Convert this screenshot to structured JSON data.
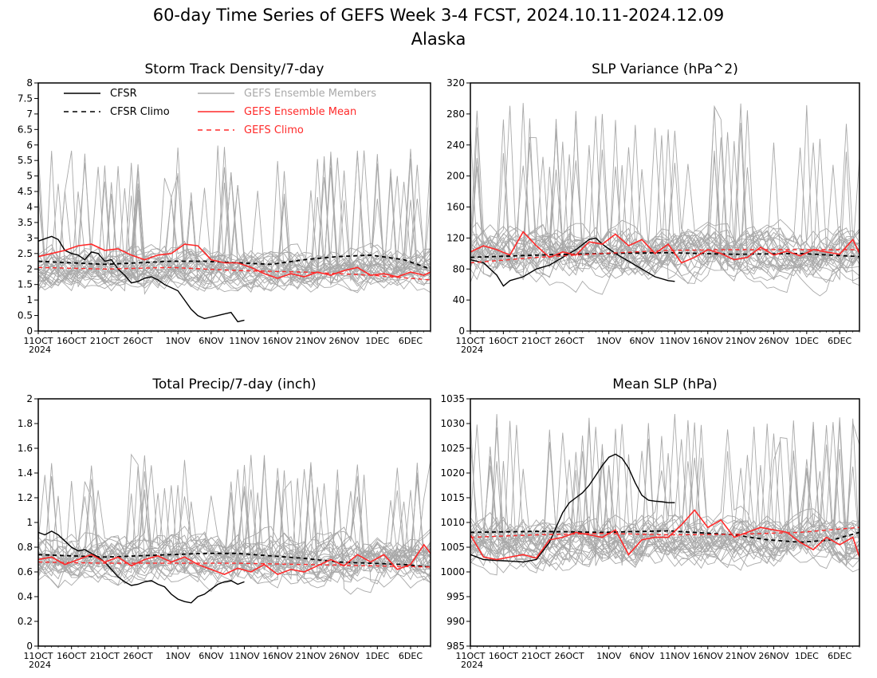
{
  "figure": {
    "title": "60-day Time Series of GEFS Week 3-4 FCST, 2024.10.11-2024.12.09",
    "subtitle": "Alaska"
  },
  "colors": {
    "cfsr": "#000000",
    "gefs_mean": "#ff2a2a",
    "gefs_members": "#a9a9a9",
    "frame": "#000000"
  },
  "legend": [
    {
      "label": "CFSR",
      "style": "solid",
      "color": "#000000"
    },
    {
      "label": "CFSR Climo",
      "style": "dashed",
      "color": "#000000"
    },
    {
      "label": "GEFS Ensemble Members",
      "style": "solid",
      "color": "#a9a9a9"
    },
    {
      "label": "GEFS Ensemble Mean",
      "style": "solid",
      "color": "#ff2a2a"
    },
    {
      "label": "GEFS Climo",
      "style": "dashed",
      "color": "#ff2a2a"
    }
  ],
  "x_axis": {
    "year_label": "2024",
    "start": "2024-10-11",
    "end": "2024-12-09",
    "tick_labels": [
      "11OCT",
      "16OCT",
      "21OCT",
      "26OCT",
      "1NOV",
      "6NOV",
      "11NOV",
      "16NOV",
      "21NOV",
      "26NOV",
      "1DEC",
      "6DEC"
    ],
    "tick_days": [
      0,
      5,
      10,
      15,
      21,
      26,
      31,
      36,
      41,
      46,
      51,
      56
    ]
  },
  "chart_data": [
    {
      "type": "line",
      "title": "Storm Track Density/7-day",
      "ylim": [
        0,
        8
      ],
      "yticks": [
        "0",
        "0.5",
        "1",
        "1.5",
        "2",
        "2.5",
        "3",
        "3.5",
        "4",
        "4.5",
        "5",
        "5.5",
        "6",
        "6.5",
        "7",
        "7.5",
        "8"
      ],
      "members_spread": {
        "center": 2.0,
        "amplitude": 1.1,
        "max_peak": 6.0
      },
      "series": [
        {
          "name": "CFSR",
          "x": [
            0,
            2,
            3,
            4,
            5,
            6,
            7,
            8,
            9,
            10,
            11,
            12,
            13,
            14,
            15,
            16,
            17,
            18,
            19,
            20,
            21,
            22,
            23,
            24,
            25,
            26,
            27,
            28,
            29,
            30,
            31
          ],
          "values": [
            2.9,
            3.05,
            2.95,
            2.6,
            2.5,
            2.45,
            2.3,
            2.55,
            2.5,
            2.25,
            2.3,
            2.0,
            1.8,
            1.55,
            1.6,
            1.7,
            1.75,
            1.65,
            1.5,
            1.4,
            1.3,
            1.0,
            0.7,
            0.5,
            0.4,
            0.45,
            0.5,
            0.55,
            0.6,
            0.3,
            0.35
          ]
        },
        {
          "name": "CFSR Climo",
          "x": [
            0,
            5,
            10,
            15,
            20,
            25,
            30,
            35,
            40,
            45,
            50,
            55,
            59
          ],
          "values": [
            2.25,
            2.2,
            2.15,
            2.2,
            2.25,
            2.25,
            2.2,
            2.15,
            2.3,
            2.4,
            2.45,
            2.3,
            2.0
          ]
        },
        {
          "name": "GEFS Ensemble Mean",
          "x": [
            0,
            2,
            4,
            6,
            8,
            10,
            12,
            14,
            16,
            18,
            20,
            22,
            24,
            26,
            28,
            30,
            32,
            34,
            36,
            38,
            40,
            42,
            44,
            46,
            48,
            50,
            52,
            54,
            56,
            58,
            59
          ],
          "values": [
            2.4,
            2.5,
            2.6,
            2.75,
            2.8,
            2.6,
            2.65,
            2.45,
            2.3,
            2.45,
            2.5,
            2.8,
            2.75,
            2.3,
            2.2,
            2.2,
            2.05,
            1.85,
            1.7,
            1.85,
            1.75,
            1.9,
            1.8,
            1.95,
            2.05,
            1.8,
            1.85,
            1.75,
            1.9,
            1.8,
            1.9
          ]
        },
        {
          "name": "GEFS Climo",
          "x": [
            0,
            10,
            20,
            30,
            40,
            50,
            59
          ],
          "values": [
            2.05,
            2.0,
            2.05,
            1.95,
            1.9,
            1.8,
            1.65
          ]
        }
      ]
    },
    {
      "type": "line",
      "title": "SLP Variance (hPa^2)",
      "ylim": [
        0,
        320
      ],
      "yticks": [
        "0",
        "40",
        "80",
        "120",
        "160",
        "200",
        "240",
        "280",
        "320"
      ],
      "members_spread": {
        "center": 100,
        "amplitude": 55,
        "max_peak": 295
      },
      "series": [
        {
          "name": "CFSR",
          "x": [
            0,
            2,
            4,
            5,
            6,
            8,
            10,
            12,
            14,
            16,
            18,
            19,
            20,
            22,
            23,
            24,
            26,
            27,
            28,
            30,
            31
          ],
          "values": [
            92,
            88,
            72,
            58,
            65,
            70,
            80,
            85,
            95,
            105,
            118,
            120,
            112,
            100,
            95,
            90,
            80,
            75,
            70,
            65,
            64
          ]
        },
        {
          "name": "CFSR Climo",
          "x": [
            0,
            10,
            20,
            30,
            40,
            50,
            59
          ],
          "values": [
            95,
            98,
            100,
            101,
            99,
            100,
            96
          ]
        },
        {
          "name": "GEFS Ensemble Mean",
          "x": [
            0,
            2,
            4,
            6,
            8,
            10,
            12,
            14,
            16,
            18,
            20,
            22,
            24,
            26,
            28,
            30,
            32,
            34,
            36,
            38,
            40,
            42,
            44,
            46,
            48,
            50,
            52,
            54,
            56,
            58,
            59
          ],
          "values": [
            102,
            110,
            105,
            98,
            128,
            110,
            95,
            102,
            98,
            115,
            112,
            125,
            110,
            118,
            100,
            112,
            88,
            95,
            105,
            100,
            92,
            95,
            108,
            98,
            103,
            97,
            105,
            102,
            99,
            118,
            100
          ]
        },
        {
          "name": "GEFS Climo",
          "x": [
            0,
            10,
            20,
            30,
            40,
            50,
            59
          ],
          "values": [
            88,
            95,
            100,
            104,
            105,
            105,
            105
          ]
        }
      ]
    },
    {
      "type": "line",
      "title": "Total Precip/7-day (inch)",
      "ylim": [
        0,
        2
      ],
      "yticks": [
        "0",
        "0.2",
        "0.4",
        "0.6",
        "0.8",
        "1",
        "1.2",
        "1.4",
        "1.6",
        "1.8",
        "2"
      ],
      "members_spread": {
        "center": 0.7,
        "amplitude": 0.32,
        "max_peak": 1.55
      },
      "series": [
        {
          "name": "CFSR",
          "x": [
            0,
            1,
            2,
            3,
            4,
            5,
            6,
            7,
            8,
            9,
            10,
            11,
            12,
            13,
            14,
            15,
            16,
            17,
            18,
            19,
            20,
            21,
            22,
            23,
            24,
            25,
            26,
            27,
            28,
            29,
            30,
            31
          ],
          "values": [
            0.92,
            0.9,
            0.93,
            0.9,
            0.85,
            0.8,
            0.77,
            0.78,
            0.75,
            0.72,
            0.68,
            0.62,
            0.56,
            0.52,
            0.49,
            0.5,
            0.52,
            0.53,
            0.5,
            0.48,
            0.42,
            0.38,
            0.36,
            0.35,
            0.4,
            0.42,
            0.46,
            0.5,
            0.52,
            0.53,
            0.5,
            0.52
          ]
        },
        {
          "name": "CFSR Climo",
          "x": [
            0,
            5,
            10,
            15,
            20,
            25,
            30,
            35,
            40,
            45,
            50,
            55,
            59
          ],
          "values": [
            0.74,
            0.73,
            0.72,
            0.73,
            0.74,
            0.75,
            0.75,
            0.73,
            0.71,
            0.68,
            0.67,
            0.66,
            0.64
          ]
        },
        {
          "name": "GEFS Ensemble Mean",
          "x": [
            0,
            2,
            4,
            6,
            8,
            10,
            12,
            14,
            16,
            18,
            20,
            22,
            24,
            26,
            28,
            30,
            32,
            34,
            36,
            38,
            40,
            42,
            44,
            46,
            48,
            50,
            52,
            54,
            56,
            58,
            59
          ],
          "values": [
            0.7,
            0.72,
            0.66,
            0.7,
            0.74,
            0.68,
            0.72,
            0.65,
            0.7,
            0.73,
            0.68,
            0.72,
            0.66,
            0.62,
            0.58,
            0.63,
            0.6,
            0.66,
            0.58,
            0.62,
            0.6,
            0.65,
            0.7,
            0.65,
            0.74,
            0.68,
            0.74,
            0.62,
            0.66,
            0.82,
            0.75
          ]
        },
        {
          "name": "GEFS Climo",
          "x": [
            0,
            10,
            20,
            30,
            40,
            50,
            59
          ],
          "values": [
            0.68,
            0.67,
            0.67,
            0.67,
            0.66,
            0.65,
            0.64
          ]
        }
      ]
    },
    {
      "type": "line",
      "title": "Mean SLP (hPa)",
      "ylim": [
        985,
        1035
      ],
      "yticks": [
        "985",
        "990",
        "995",
        "1000",
        "1005",
        "1010",
        "1015",
        "1020",
        "1025",
        "1030",
        "1035"
      ],
      "members_spread": {
        "center": 1006,
        "amplitude": 8,
        "max_peak": 1032
      },
      "series": [
        {
          "name": "CFSR",
          "x": [
            0,
            2,
            4,
            6,
            8,
            10,
            12,
            13,
            14,
            15,
            16,
            17,
            18,
            19,
            20,
            21,
            22,
            23,
            24,
            25,
            26,
            27,
            28,
            29,
            30,
            31
          ],
          "values": [
            1003.5,
            1002.5,
            1002.3,
            1002.2,
            1002.0,
            1002.5,
            1006.0,
            1009.0,
            1012.0,
            1014.0,
            1015.0,
            1016.0,
            1017.5,
            1019.5,
            1021.5,
            1023.2,
            1023.8,
            1023.0,
            1021.0,
            1018.0,
            1015.5,
            1014.5,
            1014.3,
            1014.2,
            1014.0,
            1014.0
          ]
        },
        {
          "name": "CFSR Climo",
          "x": [
            0,
            10,
            20,
            30,
            40,
            45,
            50,
            55,
            59
          ],
          "values": [
            1008.0,
            1008.2,
            1008.0,
            1008.3,
            1007.5,
            1006.5,
            1006.0,
            1006.5,
            1008.0
          ]
        },
        {
          "name": "GEFS Ensemble Mean",
          "x": [
            0,
            2,
            4,
            6,
            8,
            10,
            12,
            14,
            16,
            18,
            20,
            22,
            24,
            26,
            28,
            30,
            32,
            34,
            36,
            38,
            40,
            42,
            44,
            46,
            48,
            50,
            52,
            54,
            56,
            58,
            59
          ],
          "values": [
            1007.5,
            1003.0,
            1002.5,
            1003.0,
            1003.5,
            1002.8,
            1006.5,
            1007.0,
            1008.0,
            1007.5,
            1007.0,
            1008.5,
            1003.5,
            1006.5,
            1007.0,
            1007.0,
            1009.5,
            1012.5,
            1009.0,
            1010.5,
            1007.0,
            1008.0,
            1009.0,
            1008.5,
            1008.0,
            1006.0,
            1004.5,
            1007.0,
            1005.5,
            1007.0,
            1003.0
          ]
        },
        {
          "name": "GEFS Climo",
          "x": [
            0,
            10,
            20,
            30,
            40,
            50,
            59
          ],
          "values": [
            1007.0,
            1007.5,
            1007.8,
            1007.5,
            1007.6,
            1008.0,
            1009.0
          ]
        }
      ]
    }
  ]
}
